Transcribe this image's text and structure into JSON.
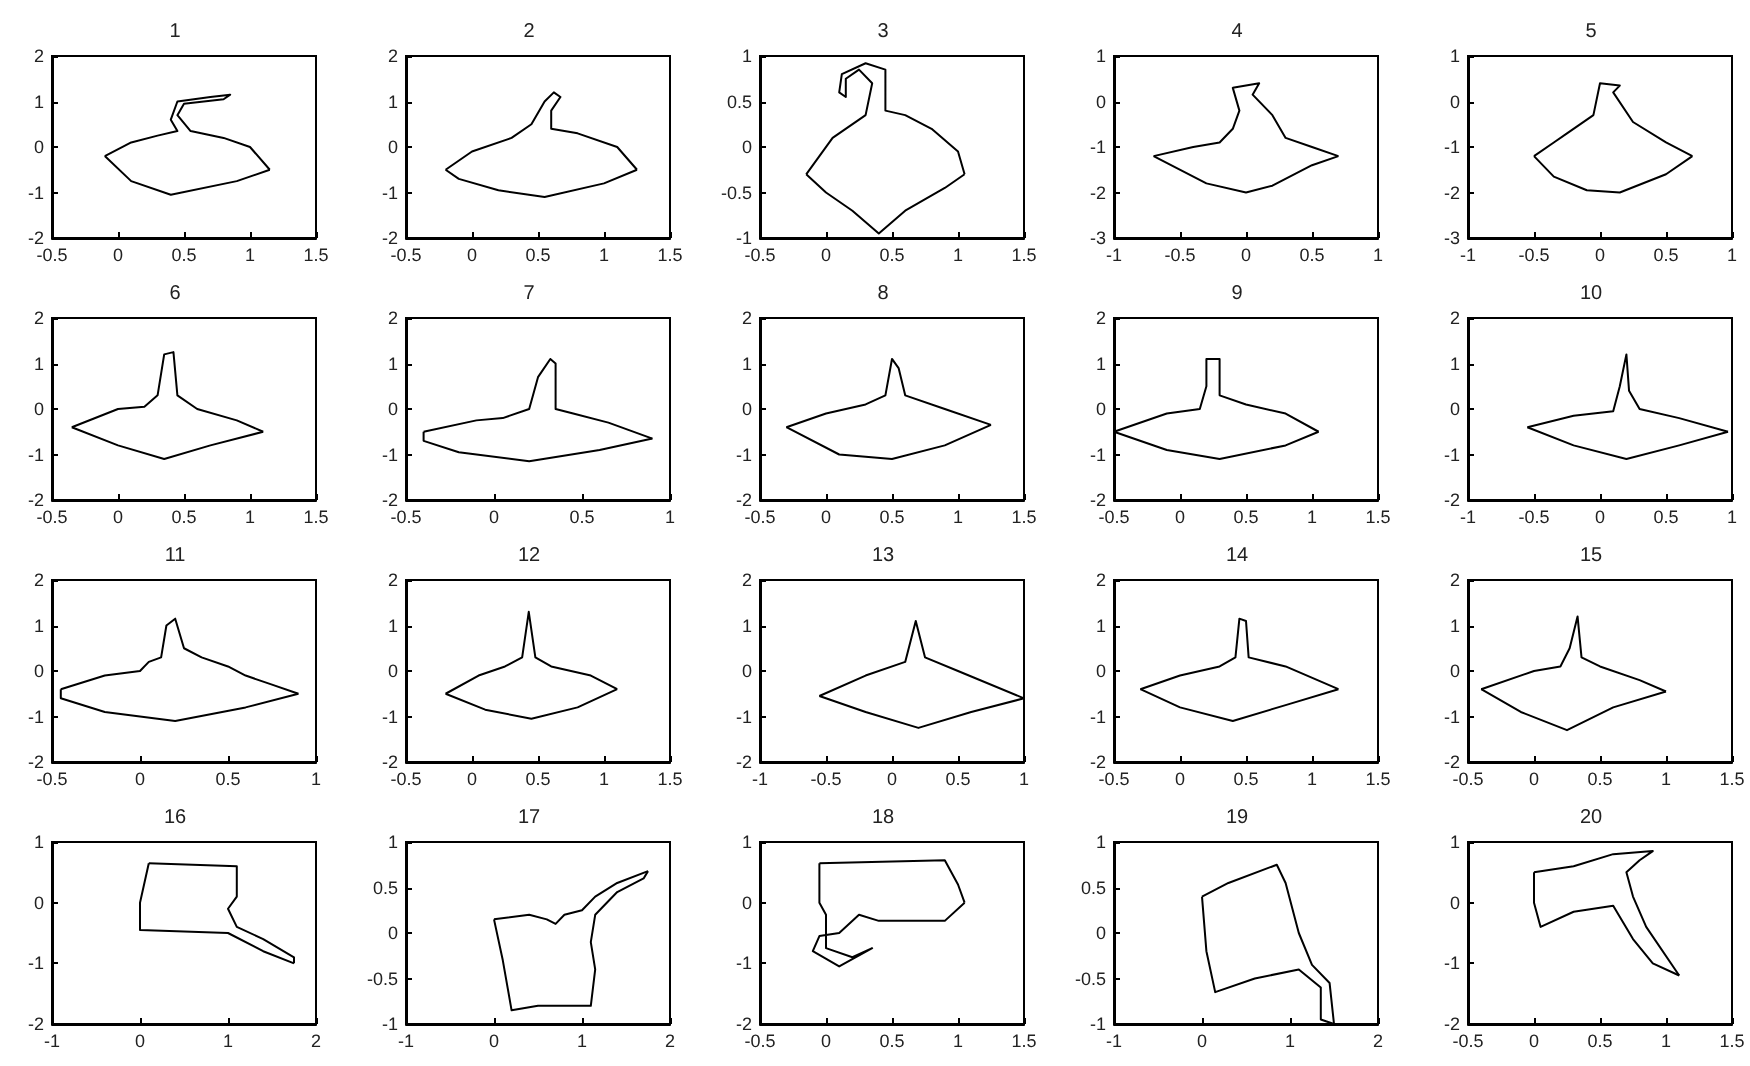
{
  "chart_data": [
    {
      "type": "line",
      "title": "1",
      "xlim": [
        -0.5,
        1.5
      ],
      "xticks": [
        -0.5,
        0,
        0.5,
        1,
        1.5
      ],
      "ylim": [
        -2,
        2
      ],
      "yticks": [
        -2,
        -1,
        0,
        1,
        2
      ],
      "series": [
        {
          "color": "#000000",
          "x": [
            -0.1,
            0.1,
            0.3,
            0.45,
            0.4,
            0.45,
            0.7,
            0.85,
            0.8,
            0.5,
            0.45,
            0.55,
            0.8,
            1.0,
            1.15
          ],
          "values": [
            -0.2,
            0.1,
            0.25,
            0.35,
            0.6,
            1.0,
            1.1,
            1.15,
            1.05,
            0.95,
            0.7,
            0.35,
            0.2,
            0.0,
            -0.5
          ]
        },
        {
          "color": "#000000",
          "x": [
            1.15,
            0.9,
            0.4,
            0.1,
            -0.1
          ],
          "values": [
            -0.5,
            -0.75,
            -1.05,
            -0.75,
            -0.2
          ]
        }
      ]
    },
    {
      "type": "line",
      "title": "2",
      "xlim": [
        -0.5,
        1.5
      ],
      "xticks": [
        -0.5,
        0,
        0.5,
        1,
        1.5
      ],
      "ylim": [
        -2,
        2
      ],
      "yticks": [
        -2,
        -1,
        0,
        1,
        2
      ],
      "series": [
        {
          "color": "#000000",
          "x": [
            -0.2,
            0,
            0.3,
            0.45,
            0.55,
            0.62,
            0.67,
            0.6,
            0.6,
            0.8,
            1.1,
            1.25
          ],
          "values": [
            -0.5,
            -0.1,
            0.2,
            0.5,
            1.0,
            1.2,
            1.1,
            0.8,
            0.4,
            0.3,
            0,
            -0.5
          ]
        },
        {
          "color": "#000000",
          "x": [
            1.25,
            1.0,
            0.55,
            0.2,
            -0.1,
            -0.2
          ],
          "values": [
            -0.5,
            -0.8,
            -1.1,
            -0.95,
            -0.7,
            -0.5
          ]
        }
      ]
    },
    {
      "type": "line",
      "title": "3",
      "xlim": [
        -0.5,
        1.5
      ],
      "xticks": [
        -0.5,
        0,
        0.5,
        1,
        1.5
      ],
      "ylim": [
        -1,
        1
      ],
      "yticks": [
        -1,
        -0.5,
        0,
        0.5,
        1
      ],
      "series": [
        {
          "color": "#000000",
          "x": [
            -0.15,
            0.05,
            0.3,
            0.35,
            0.25,
            0.15,
            0.15,
            0.1,
            0.12,
            0.3,
            0.45,
            0.45,
            0.45,
            0.6,
            0.8,
            1.0,
            1.05
          ],
          "values": [
            -0.3,
            0.1,
            0.35,
            0.7,
            0.85,
            0.75,
            0.55,
            0.6,
            0.8,
            0.92,
            0.85,
            0.6,
            0.4,
            0.35,
            0.2,
            -0.05,
            -0.3
          ]
        },
        {
          "color": "#000000",
          "x": [
            1.05,
            0.9,
            0.6,
            0.4,
            0.2,
            0,
            -0.15
          ],
          "values": [
            -0.3,
            -0.45,
            -0.7,
            -0.95,
            -0.7,
            -0.5,
            -0.3
          ]
        }
      ]
    },
    {
      "type": "line",
      "title": "4",
      "xlim": [
        -1,
        1
      ],
      "xticks": [
        -1,
        -0.5,
        0,
        0.5,
        1
      ],
      "ylim": [
        -3,
        1
      ],
      "yticks": [
        -3,
        -2,
        -1,
        0,
        1
      ],
      "series": [
        {
          "color": "#000000",
          "x": [
            -0.7,
            -0.4,
            -0.2,
            -0.1,
            -0.05,
            -0.1,
            0.1,
            0.05,
            0.2,
            0.3,
            0.5,
            0.7
          ],
          "values": [
            -1.2,
            -1.0,
            -0.9,
            -0.6,
            -0.2,
            0.3,
            0.4,
            0.15,
            -0.3,
            -0.8,
            -1.0,
            -1.2
          ]
        },
        {
          "color": "#000000",
          "x": [
            0.7,
            0.5,
            0.2,
            0,
            -0.3,
            -0.7
          ],
          "values": [
            -1.2,
            -1.4,
            -1.85,
            -2.0,
            -1.8,
            -1.2
          ]
        }
      ]
    },
    {
      "type": "line",
      "title": "5",
      "xlim": [
        -1,
        1
      ],
      "xticks": [
        -1,
        -0.5,
        0,
        0.5,
        1
      ],
      "ylim": [
        -3,
        1
      ],
      "yticks": [
        -3,
        -2,
        -1,
        0,
        1
      ],
      "series": [
        {
          "color": "#000000",
          "x": [
            -0.5,
            -0.35,
            -0.25,
            -0.05,
            0.0,
            0.15,
            0.1,
            0.25,
            0.5,
            0.7
          ],
          "values": [
            -1.2,
            -0.9,
            -0.7,
            -0.3,
            0.4,
            0.35,
            0.2,
            -0.45,
            -0.9,
            -1.2
          ]
        },
        {
          "color": "#000000",
          "x": [
            0.7,
            0.5,
            0.15,
            -0.1,
            -0.35,
            -0.5
          ],
          "values": [
            -1.2,
            -1.6,
            -2.0,
            -1.95,
            -1.65,
            -1.2
          ]
        }
      ]
    },
    {
      "type": "line",
      "title": "6",
      "xlim": [
        -0.5,
        1.5
      ],
      "xticks": [
        -0.5,
        0,
        0.5,
        1,
        1.5
      ],
      "ylim": [
        -2,
        2
      ],
      "yticks": [
        -2,
        -1,
        0,
        1,
        2
      ],
      "series": [
        {
          "color": "#000000",
          "x": [
            -0.35,
            0,
            0.2,
            0.3,
            0.35,
            0.42,
            0.45,
            0.6,
            0.9,
            1.1
          ],
          "values": [
            -0.4,
            0,
            0.05,
            0.3,
            1.2,
            1.25,
            0.3,
            0.0,
            -0.25,
            -0.5
          ]
        },
        {
          "color": "#000000",
          "x": [
            1.1,
            0.7,
            0.35,
            0,
            -0.35
          ],
          "values": [
            -0.5,
            -0.8,
            -1.1,
            -0.8,
            -0.4
          ]
        }
      ]
    },
    {
      "type": "line",
      "title": "7",
      "xlim": [
        -0.5,
        1
      ],
      "xticks": [
        -0.5,
        0,
        0.5,
        1
      ],
      "ylim": [
        -2,
        2
      ],
      "yticks": [
        -2,
        -1,
        0,
        1,
        2
      ],
      "series": [
        {
          "color": "#000000",
          "x": [
            -0.4,
            -0.1,
            0.05,
            0.2,
            0.25,
            0.32,
            0.35,
            0.35,
            0.45,
            0.65,
            0.9
          ],
          "values": [
            -0.5,
            -0.25,
            -0.2,
            0.0,
            0.7,
            1.1,
            1.0,
            0.0,
            -0.1,
            -0.3,
            -0.65
          ]
        },
        {
          "color": "#000000",
          "x": [
            0.9,
            0.6,
            0.2,
            -0.2,
            -0.4,
            -0.4
          ],
          "values": [
            -0.65,
            -0.9,
            -1.15,
            -0.95,
            -0.7,
            -0.5
          ]
        }
      ]
    },
    {
      "type": "line",
      "title": "8",
      "xlim": [
        -0.5,
        1.5
      ],
      "xticks": [
        -0.5,
        0,
        0.5,
        1,
        1.5
      ],
      "ylim": [
        -2,
        2
      ],
      "yticks": [
        -2,
        -1,
        0,
        1,
        2
      ],
      "series": [
        {
          "color": "#000000",
          "x": [
            -0.3,
            0,
            0.3,
            0.45,
            0.5,
            0.55,
            0.6,
            0.9,
            1.25
          ],
          "values": [
            -0.4,
            -0.1,
            0.1,
            0.3,
            1.1,
            0.9,
            0.3,
            0.0,
            -0.35
          ]
        },
        {
          "color": "#000000",
          "x": [
            1.25,
            0.9,
            0.5,
            0.1,
            -0.3
          ],
          "values": [
            -0.35,
            -0.8,
            -1.1,
            -1.0,
            -0.4
          ]
        }
      ]
    },
    {
      "type": "line",
      "title": "9",
      "xlim": [
        -0.5,
        1.5
      ],
      "xticks": [
        -0.5,
        0,
        0.5,
        1,
        1.5
      ],
      "ylim": [
        -2,
        2
      ],
      "yticks": [
        -2,
        -1,
        0,
        1,
        2
      ],
      "series": [
        {
          "color": "#000000",
          "x": [
            -0.5,
            -0.1,
            0.15,
            0.2,
            0.2,
            0.3,
            0.3,
            0.5,
            0.8,
            1.05
          ],
          "values": [
            -0.5,
            -0.1,
            0.0,
            0.5,
            1.1,
            1.1,
            0.3,
            0.1,
            -0.1,
            -0.5
          ]
        },
        {
          "color": "#000000",
          "x": [
            1.05,
            0.8,
            0.3,
            -0.1,
            -0.5
          ],
          "values": [
            -0.5,
            -0.8,
            -1.1,
            -0.9,
            -0.5
          ]
        }
      ]
    },
    {
      "type": "line",
      "title": "10",
      "xlim": [
        -1,
        1
      ],
      "xticks": [
        -1,
        -0.5,
        0,
        0.5,
        1
      ],
      "ylim": [
        -2,
        2
      ],
      "yticks": [
        -2,
        -1,
        0,
        1,
        2
      ],
      "series": [
        {
          "color": "#000000",
          "x": [
            -0.55,
            -0.2,
            0.1,
            0.15,
            0.2,
            0.22,
            0.3,
            0.6,
            0.97
          ],
          "values": [
            -0.4,
            -0.15,
            -0.05,
            0.5,
            1.2,
            0.4,
            0.0,
            -0.2,
            -0.5
          ]
        },
        {
          "color": "#000000",
          "x": [
            0.97,
            0.6,
            0.2,
            -0.2,
            -0.55
          ],
          "values": [
            -0.5,
            -0.8,
            -1.1,
            -0.8,
            -0.4
          ]
        }
      ]
    },
    {
      "type": "line",
      "title": "11",
      "xlim": [
        -0.5,
        1
      ],
      "xticks": [
        -0.5,
        0,
        0.5,
        1
      ],
      "ylim": [
        -2,
        2
      ],
      "yticks": [
        -2,
        -1,
        0,
        1,
        2
      ],
      "series": [
        {
          "color": "#000000",
          "x": [
            -0.45,
            -0.2,
            0,
            0.05,
            0.12,
            0.15,
            0.2,
            0.25,
            0.35,
            0.5,
            0.6,
            0.75,
            0.9
          ],
          "values": [
            -0.4,
            -0.1,
            0.0,
            0.2,
            0.3,
            1.0,
            1.15,
            0.5,
            0.3,
            0.1,
            -0.1,
            -0.3,
            -0.5
          ]
        },
        {
          "color": "#000000",
          "x": [
            0.9,
            0.6,
            0.2,
            -0.2,
            -0.45,
            -0.45
          ],
          "values": [
            -0.5,
            -0.8,
            -1.1,
            -0.9,
            -0.6,
            -0.4
          ]
        }
      ]
    },
    {
      "type": "line",
      "title": "12",
      "xlim": [
        -0.5,
        1.5
      ],
      "xticks": [
        -0.5,
        0,
        0.5,
        1,
        1.5
      ],
      "ylim": [
        -2,
        2
      ],
      "yticks": [
        -2,
        -1,
        0,
        1,
        2
      ],
      "series": [
        {
          "color": "#000000",
          "x": [
            -0.2,
            0.05,
            0.25,
            0.38,
            0.43,
            0.48,
            0.6,
            0.9,
            1.1
          ],
          "values": [
            -0.5,
            -0.1,
            0.1,
            0.3,
            1.3,
            0.3,
            0.1,
            -0.1,
            -0.4
          ]
        },
        {
          "color": "#000000",
          "x": [
            1.1,
            0.8,
            0.45,
            0.1,
            -0.2
          ],
          "values": [
            -0.4,
            -0.8,
            -1.05,
            -0.85,
            -0.5
          ]
        }
      ]
    },
    {
      "type": "line",
      "title": "13",
      "xlim": [
        -1,
        1
      ],
      "xticks": [
        -1,
        -0.5,
        0,
        0.5,
        1
      ],
      "ylim": [
        -2,
        2
      ],
      "yticks": [
        -2,
        -1,
        0,
        1,
        2
      ],
      "series": [
        {
          "color": "#000000",
          "x": [
            -0.55,
            -0.2,
            0.1,
            0.18,
            0.25,
            0.5,
            1.0
          ],
          "values": [
            -0.55,
            -0.1,
            0.2,
            1.1,
            0.3,
            0.0,
            -0.6
          ]
        },
        {
          "color": "#000000",
          "x": [
            1.0,
            0.6,
            0.2,
            -0.2,
            -0.55
          ],
          "values": [
            -0.6,
            -0.9,
            -1.25,
            -0.9,
            -0.55
          ]
        }
      ]
    },
    {
      "type": "line",
      "title": "14",
      "xlim": [
        -0.5,
        1.5
      ],
      "xticks": [
        -0.5,
        0,
        0.5,
        1,
        1.5
      ],
      "ylim": [
        -2,
        2
      ],
      "yticks": [
        -2,
        -1,
        0,
        1,
        2
      ],
      "series": [
        {
          "color": "#000000",
          "x": [
            -0.3,
            0,
            0.3,
            0.42,
            0.45,
            0.5,
            0.52,
            0.8,
            1.2
          ],
          "values": [
            -0.4,
            -0.1,
            0.1,
            0.3,
            1.15,
            1.1,
            0.3,
            0.1,
            -0.4
          ]
        },
        {
          "color": "#000000",
          "x": [
            1.2,
            0.8,
            0.4,
            0,
            -0.3
          ],
          "values": [
            -0.4,
            -0.75,
            -1.1,
            -0.8,
            -0.4
          ]
        }
      ]
    },
    {
      "type": "line",
      "title": "15",
      "xlim": [
        -0.5,
        1.5
      ],
      "xticks": [
        -0.5,
        0,
        0.5,
        1,
        1.5
      ],
      "ylim": [
        -2,
        2
      ],
      "yticks": [
        -2,
        -1,
        0,
        1,
        2
      ],
      "series": [
        {
          "color": "#000000",
          "x": [
            -0.4,
            0,
            0.2,
            0.27,
            0.33,
            0.36,
            0.5,
            0.8,
            1.0
          ],
          "values": [
            -0.4,
            0.0,
            0.1,
            0.5,
            1.2,
            0.3,
            0.1,
            -0.2,
            -0.45
          ]
        },
        {
          "color": "#000000",
          "x": [
            1.0,
            0.6,
            0.25,
            -0.1,
            -0.4
          ],
          "values": [
            -0.45,
            -0.8,
            -1.3,
            -0.9,
            -0.4
          ]
        }
      ]
    },
    {
      "type": "line",
      "title": "16",
      "xlim": [
        -1,
        2
      ],
      "xticks": [
        -1,
        0,
        1,
        2
      ],
      "ylim": [
        -2,
        1
      ],
      "yticks": [
        -2,
        -1,
        0,
        1
      ],
      "series": [
        {
          "color": "#000000",
          "x": [
            0.1,
            1.1,
            1.1,
            1.0,
            1.1,
            1.4,
            1.75,
            1.75
          ],
          "values": [
            0.65,
            0.6,
            0.1,
            -0.1,
            -0.4,
            -0.6,
            -0.9,
            -1.0
          ]
        },
        {
          "color": "#000000",
          "x": [
            1.75,
            1.4,
            1.0,
            0,
            0,
            0.1
          ],
          "values": [
            -1.0,
            -0.8,
            -0.5,
            -0.45,
            0.0,
            0.65
          ]
        }
      ]
    },
    {
      "type": "line",
      "title": "17",
      "xlim": [
        -1,
        2
      ],
      "xticks": [
        -1,
        0,
        1,
        2
      ],
      "ylim": [
        -1,
        1
      ],
      "yticks": [
        -1,
        -0.5,
        0,
        0.5,
        1
      ],
      "series": [
        {
          "color": "#000000",
          "x": [
            0.0,
            0.4,
            0.6,
            0.7,
            0.8,
            1.0,
            1.15,
            1.4,
            1.75
          ],
          "values": [
            0.15,
            0.2,
            0.15,
            0.1,
            0.2,
            0.25,
            0.4,
            0.55,
            0.68
          ]
        },
        {
          "color": "#000000",
          "x": [
            1.75,
            1.7,
            1.4,
            1.15,
            1.1,
            1.15,
            1.1,
            0.5,
            0.2,
            0.1,
            0.0
          ],
          "values": [
            0.68,
            0.6,
            0.45,
            0.2,
            -0.1,
            -0.4,
            -0.8,
            -0.8,
            -0.85,
            -0.3,
            0.15
          ]
        }
      ]
    },
    {
      "type": "line",
      "title": "18",
      "xlim": [
        -0.5,
        1.5
      ],
      "xticks": [
        -0.5,
        0,
        0.5,
        1,
        1.5
      ],
      "ylim": [
        -2,
        1
      ],
      "yticks": [
        -2,
        -1,
        0,
        1
      ],
      "series": [
        {
          "color": "#000000",
          "x": [
            -0.05,
            0.9,
            1.0,
            1.05
          ],
          "values": [
            0.65,
            0.7,
            0.3,
            0.0
          ]
        },
        {
          "color": "#000000",
          "x": [
            1.05,
            0.9,
            0.4,
            0.25,
            0.1,
            -0.05,
            -0.1,
            0.1,
            0.35,
            0.2,
            0,
            0.0,
            0.0,
            -0.05,
            -0.05
          ],
          "values": [
            0.0,
            -0.3,
            -0.3,
            -0.2,
            -0.5,
            -0.55,
            -0.8,
            -1.05,
            -0.75,
            -0.9,
            -0.75,
            -0.55,
            -0.2,
            0.0,
            0.65
          ]
        }
      ]
    },
    {
      "type": "line",
      "title": "19",
      "xlim": [
        -1,
        2
      ],
      "xticks": [
        -1,
        0,
        1,
        2
      ],
      "ylim": [
        -1,
        1
      ],
      "yticks": [
        -1,
        -0.5,
        0,
        0.5,
        1
      ],
      "series": [
        {
          "color": "#000000",
          "x": [
            0,
            0.3,
            0.85,
            0.95,
            1.1,
            1.25,
            1.45,
            1.5
          ],
          "values": [
            0.4,
            0.55,
            0.75,
            0.55,
            0.0,
            -0.35,
            -0.55,
            -1.0
          ]
        },
        {
          "color": "#000000",
          "x": [
            1.5,
            1.35,
            1.35,
            1.1,
            0.6,
            0.15,
            0.05,
            0
          ],
          "values": [
            -1.0,
            -0.95,
            -0.6,
            -0.4,
            -0.5,
            -0.65,
            -0.2,
            0.4
          ]
        }
      ]
    },
    {
      "type": "line",
      "title": "20",
      "xlim": [
        -0.5,
        1.5
      ],
      "xticks": [
        -0.5,
        0,
        0.5,
        1,
        1.5
      ],
      "ylim": [
        -2,
        1
      ],
      "yticks": [
        -2,
        -1,
        0,
        1
      ],
      "series": [
        {
          "color": "#000000",
          "x": [
            0,
            0.3,
            0.6,
            0.9,
            0.8,
            0.7,
            0.75,
            0.85,
            1.1
          ],
          "values": [
            0.5,
            0.6,
            0.8,
            0.85,
            0.7,
            0.5,
            0.1,
            -0.4,
            -1.2
          ]
        },
        {
          "color": "#000000",
          "x": [
            1.1,
            0.9,
            0.75,
            0.6,
            0.3,
            0.05,
            0,
            0
          ],
          "values": [
            -1.2,
            -1.0,
            -0.6,
            -0.05,
            -0.15,
            -0.4,
            0.0,
            0.5
          ]
        }
      ]
    }
  ]
}
